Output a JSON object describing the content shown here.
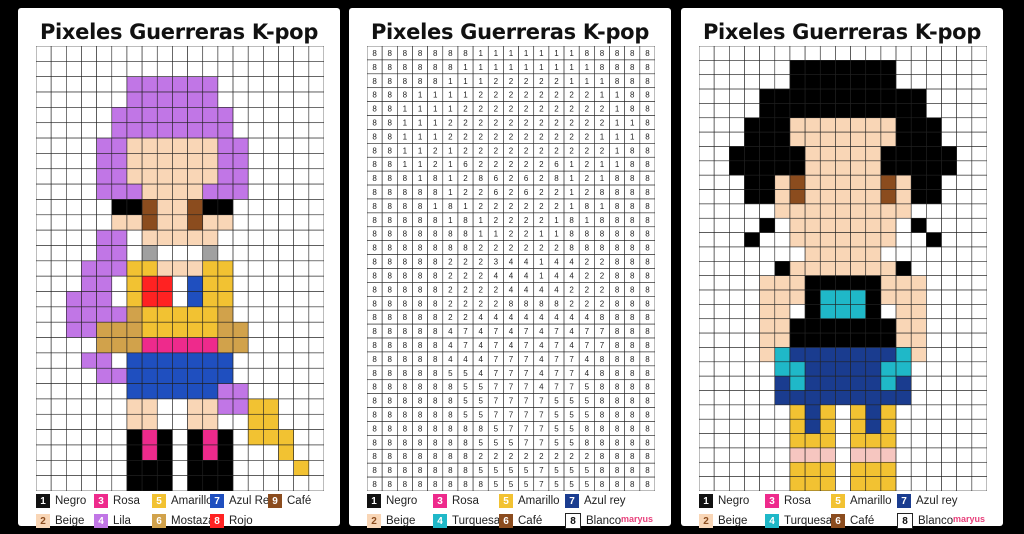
{
  "panels": [
    {
      "title": "Pixeles Guerreras K-pop"
    },
    {
      "title": "Pixeles Guerreras K-pop"
    },
    {
      "title": "Pixeles Guerreras K-pop"
    }
  ],
  "colors": {
    "negro": "#000000",
    "rosa": "#ee2a8c",
    "amarillo": "#f2c232",
    "azul_rey": "#1f4fbf",
    "azul_rey_dark": "#1a3c8f",
    "cafe": "#8b4c1e",
    "beige": "#f9d6b6",
    "lila": "#c176e6",
    "mostaza": "#d1a24b",
    "rojo": "#ff2222",
    "turquesa": "#1fb8c8",
    "blanco": "#ffffff",
    "gris": "#a0a0a0",
    "rosa_palido": "#f6c6c0"
  },
  "legend_left": [
    {
      "num": "1",
      "label": "Negro",
      "color": "#111111",
      "text": "#ffffff"
    },
    {
      "num": "3",
      "label": "Rosa",
      "color": "#ee2a8c",
      "text": "#ffffff"
    },
    {
      "num": "5",
      "label": "Amarillo",
      "color": "#f2c232",
      "text": "#ffffff"
    },
    {
      "num": "7",
      "label": "Azul Rey",
      "color": "#1f4fbf",
      "text": "#ffffff"
    },
    {
      "num": "9",
      "label": "Café",
      "color": "#8b4c1e",
      "text": "#ffffff"
    },
    {
      "num": "2",
      "label": "Beige",
      "color": "#f9d6b6",
      "text": "#8b4c1e"
    },
    {
      "num": "4",
      "label": "Lila",
      "color": "#c176e6",
      "text": "#ffffff"
    },
    {
      "num": "6",
      "label": "Mostaza",
      "color": "#d1a24b",
      "text": "#ffffff"
    },
    {
      "num": "8",
      "label": "Rojo",
      "color": "#ff2222",
      "text": "#ffffff"
    }
  ],
  "legend_mid": [
    {
      "num": "1",
      "label": "Negro",
      "color": "#111111",
      "text": "#ffffff"
    },
    {
      "num": "3",
      "label": "Rosa",
      "color": "#ee2a8c",
      "text": "#ffffff"
    },
    {
      "num": "5",
      "label": "Amarillo",
      "color": "#f2c232",
      "text": "#ffffff"
    },
    {
      "num": "7",
      "label": "Azul rey",
      "color": "#1a3c8f",
      "text": "#ffffff"
    },
    {
      "num": "2",
      "label": "Beige",
      "color": "#f9d6b6",
      "text": "#8b4c1e"
    },
    {
      "num": "4",
      "label": "Turquesa",
      "color": "#1fb8c8",
      "text": "#ffffff"
    },
    {
      "num": "6",
      "label": "Café",
      "color": "#8b4c1e",
      "text": "#ffffff"
    },
    {
      "num": "8",
      "label": "Blanco",
      "color": "#ffffff",
      "text": "#111111"
    }
  ],
  "legend_right": [
    {
      "num": "1",
      "label": "Negro",
      "color": "#111111",
      "text": "#ffffff"
    },
    {
      "num": "3",
      "label": "Rosa",
      "color": "#ee2a8c",
      "text": "#ffffff"
    },
    {
      "num": "5",
      "label": "Amarillo",
      "color": "#f2c232",
      "text": "#ffffff"
    },
    {
      "num": "7",
      "label": "Azul rey",
      "color": "#1a3c8f",
      "text": "#ffffff"
    },
    {
      "num": "2",
      "label": "Beige",
      "color": "#f9d6b6",
      "text": "#8b4c1e"
    },
    {
      "num": "4",
      "label": "Turquesa",
      "color": "#1fb8c8",
      "text": "#ffffff"
    },
    {
      "num": "6",
      "label": "Café",
      "color": "#8b4c1e",
      "text": "#ffffff"
    },
    {
      "num": "8",
      "label": "Blanco",
      "color": "#ffffff",
      "text": "#111111"
    }
  ],
  "logo_text": "maryus",
  "number_grid": [
    "8888888111111188888",
    "8888881111111118888",
    "8888811122222111888",
    "8881111222222221188",
    "8811112222222222188",
    "8811122222222222118",
    "8811122222222221118",
    "8811212222222222188",
    "8811216222226121188",
    "8881812862628121888",
    "8888812262622128888",
    "8888181222222181888",
    "8888818122221818888",
    "8888888112211888888",
    "8888888222222888888",
    "8888822234414422888",
    "8888822244414422888",
    "8888822224444222888",
    "8888822228888222888",
    "8888822444444448888",
    "8888847474747477888",
    "8888847474747477888",
    "8888844477747748888",
    "8888855477747748888",
    "8888885577747758888",
    "8888885577775558888",
    "8888885577775558888",
    "8888888857775588888",
    "8888888555775588888",
    "8888888222222228888",
    "8888888555575558888",
    "8888888855575558888"
  ]
}
